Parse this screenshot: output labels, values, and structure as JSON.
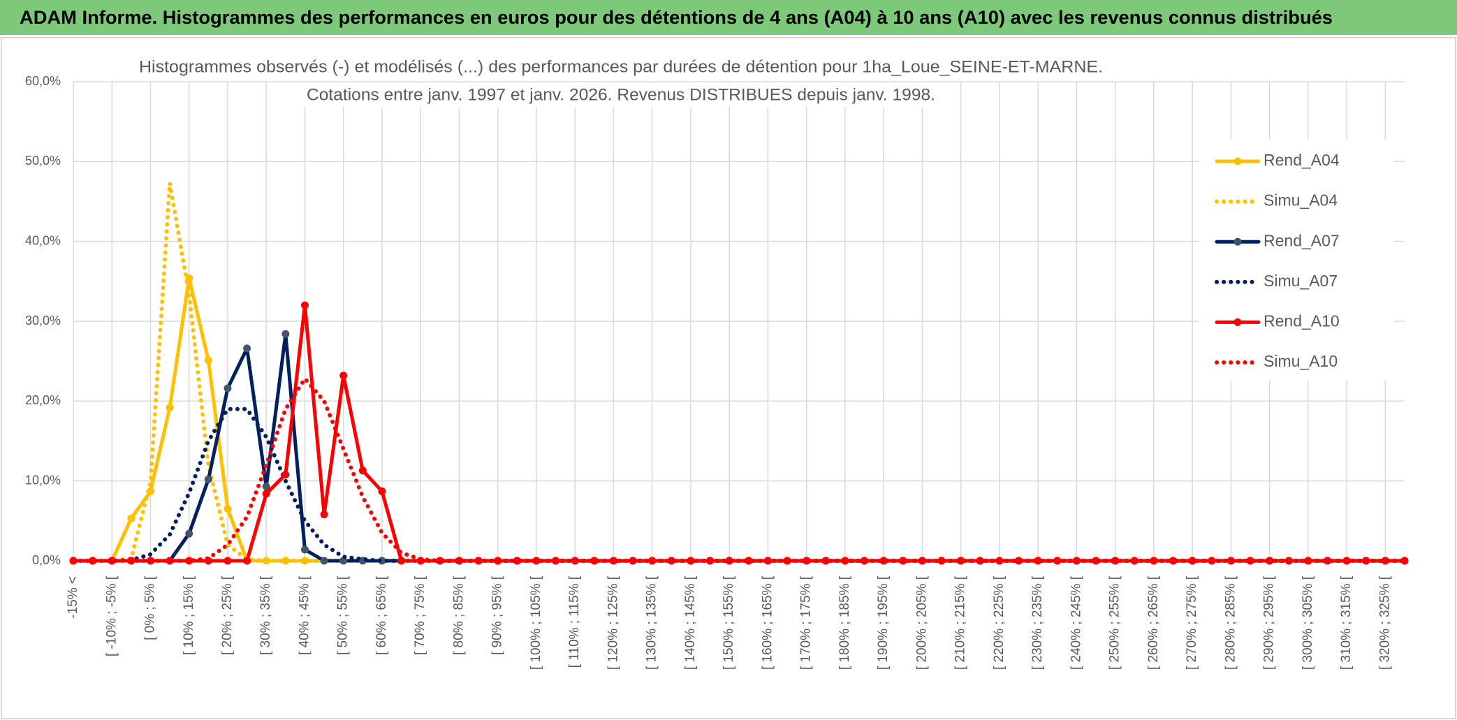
{
  "header": {
    "title": "ADAM Informe. Histogrammes des performances en euros pour des détentions de 4 ans (A04) à 10 ans (A10) avec les revenus connus distribués"
  },
  "chart_data": {
    "type": "line",
    "title": "Histogrammes observés (-) et modélisés (...) des performances par durées de détention pour 1ha_Loue_SEINE-ET-MARNE.",
    "subtitle": "Cotations entre janv. 1997 et janv. 2026. Revenus DISTRIBUES depuis janv. 1998.",
    "categories": [
      "-15% <",
      null,
      "[ -10% ; -5% [",
      null,
      "[ 0% ; 5% [",
      null,
      "[ 10% ; 15% [",
      null,
      "[ 20% ; 25% [",
      null,
      "[ 30% ; 35% [",
      null,
      "[ 40% ; 45% [",
      null,
      "[ 50% ; 55% [",
      null,
      "[ 60% ; 65% [",
      null,
      "[ 70% ; 75% [",
      null,
      "[ 80% ; 85% [",
      null,
      "[ 90% ; 95% [",
      null,
      "[ 100% ; 105% [",
      null,
      "[ 110% ; 115% [",
      null,
      "[ 120% ; 125% [",
      null,
      "[ 130% ; 135% [",
      null,
      "[ 140% ; 145% [",
      null,
      "[ 150% ; 155% [",
      null,
      "[ 160% ; 165% [",
      null,
      "[ 170% ; 175% [",
      null,
      "[ 180% ; 185% [",
      null,
      "[ 190% ; 195% [",
      null,
      "[ 200% ; 205% [",
      null,
      "[ 210% ; 215% [",
      null,
      "[ 220% ; 225% [",
      null,
      "[ 230% ; 235% [",
      null,
      "[ 240% ; 245% [",
      null,
      "[ 250% ; 255% [",
      null,
      "[ 260% ; 265% [",
      null,
      "[ 270% ; 275% [",
      null,
      "[ 280% ; 285% [",
      null,
      "[ 290% ; 295% [",
      null,
      "[ 300% ; 305% [",
      null,
      "[ 310% ; 315% [",
      null,
      "[ 320% ; 325% [",
      null
    ],
    "series": [
      {
        "name": "Rend_A04",
        "color": "#FFC000",
        "line_style": "solid",
        "markers": true,
        "values": [
          0,
          0,
          0,
          5.3,
          8.7,
          19.2,
          35.4,
          25.1,
          6.5,
          0,
          0,
          0,
          0,
          0,
          0,
          0,
          0,
          0,
          0,
          0,
          0,
          0,
          0,
          0,
          0,
          0,
          0,
          0,
          0,
          0,
          0,
          0,
          0,
          0,
          0,
          0,
          0,
          0,
          0,
          0,
          0,
          0,
          0,
          0,
          0,
          0,
          0,
          0,
          0,
          0,
          0,
          0,
          0,
          0,
          0,
          0,
          0,
          0,
          0,
          0,
          0,
          0,
          0,
          0,
          0,
          0,
          0,
          0,
          0,
          0
        ]
      },
      {
        "name": "Simu_A04",
        "color": "#FFC000",
        "line_style": "dotted",
        "markers": false,
        "values": [
          0,
          0,
          0,
          0.3,
          9.8,
          47.3,
          33.3,
          12,
          2,
          0.2,
          0,
          0,
          0,
          0,
          0,
          0,
          0,
          0,
          0,
          0,
          0,
          0,
          0,
          0,
          0,
          0,
          0,
          0,
          0,
          0,
          0,
          0,
          0,
          0,
          0,
          0,
          0,
          0,
          0,
          0,
          0,
          0,
          0,
          0,
          0,
          0,
          0,
          0,
          0,
          0,
          0,
          0,
          0,
          0,
          0,
          0,
          0,
          0,
          0,
          0,
          0,
          0,
          0,
          0,
          0,
          0,
          0,
          0,
          0,
          0
        ]
      },
      {
        "name": "Rend_A07",
        "color": "#002060",
        "line_style": "solid",
        "markers": true,
        "values": [
          0,
          0,
          0,
          0,
          0,
          0,
          3.4,
          10.2,
          21.6,
          26.6,
          9.3,
          28.4,
          1.4,
          0,
          0,
          0,
          0,
          0,
          0,
          0,
          0,
          0,
          0,
          0,
          0,
          0,
          0,
          0,
          0,
          0,
          0,
          0,
          0,
          0,
          0,
          0,
          0,
          0,
          0,
          0,
          0,
          0,
          0,
          0,
          0,
          0,
          0,
          0,
          0,
          0,
          0,
          0,
          0,
          0,
          0,
          0,
          0,
          0,
          0,
          0,
          0,
          0,
          0,
          0,
          0,
          0,
          0,
          0,
          0,
          0
        ]
      },
      {
        "name": "Simu_A07",
        "color": "#002060",
        "line_style": "dotted",
        "markers": false,
        "values": [
          0,
          0,
          0,
          0.1,
          0.8,
          3.3,
          8.5,
          15,
          19,
          19,
          15.5,
          10,
          5,
          2,
          0.5,
          0.2,
          0,
          0,
          0,
          0,
          0,
          0,
          0,
          0,
          0,
          0,
          0,
          0,
          0,
          0,
          0,
          0,
          0,
          0,
          0,
          0,
          0,
          0,
          0,
          0,
          0,
          0,
          0,
          0,
          0,
          0,
          0,
          0,
          0,
          0,
          0,
          0,
          0,
          0,
          0,
          0,
          0,
          0,
          0,
          0,
          0,
          0,
          0,
          0,
          0,
          0,
          0,
          0,
          0,
          0
        ]
      },
      {
        "name": "Rend_A10",
        "color": "#FF0000",
        "line_style": "solid",
        "markers": true,
        "values": [
          0,
          0,
          0,
          0,
          0,
          0,
          0,
          0,
          0,
          0,
          8.4,
          10.8,
          32,
          5.8,
          23.2,
          11.3,
          8.7,
          0,
          0,
          0,
          0,
          0,
          0,
          0,
          0,
          0,
          0,
          0,
          0,
          0,
          0,
          0,
          0,
          0,
          0,
          0,
          0,
          0,
          0,
          0,
          0,
          0,
          0,
          0,
          0,
          0,
          0,
          0,
          0,
          0,
          0,
          0,
          0,
          0,
          0,
          0,
          0,
          0,
          0,
          0,
          0,
          0,
          0,
          0,
          0,
          0,
          0,
          0,
          0,
          0
        ]
      },
      {
        "name": "Simu_A10",
        "color": "#FF0000",
        "line_style": "dotted",
        "markers": false,
        "values": [
          0,
          0,
          0,
          0,
          0,
          0,
          0,
          0.3,
          2,
          5.5,
          12,
          19,
          22.8,
          20,
          14,
          8,
          3.5,
          1,
          0.2,
          0,
          0,
          0,
          0,
          0,
          0,
          0,
          0,
          0,
          0,
          0,
          0,
          0,
          0,
          0,
          0,
          0,
          0,
          0,
          0,
          0,
          0,
          0,
          0,
          0,
          0,
          0,
          0,
          0,
          0,
          0,
          0,
          0,
          0,
          0,
          0,
          0,
          0,
          0,
          0,
          0,
          0,
          0,
          0,
          0,
          0,
          0,
          0,
          0,
          0,
          0
        ]
      }
    ],
    "ylim": [
      0,
      60
    ],
    "yticks": [
      {
        "value": 0,
        "label": "0,0%"
      },
      {
        "value": 10,
        "label": "10,0%"
      },
      {
        "value": 20,
        "label": "20,0%"
      },
      {
        "value": 30,
        "label": "30,0%"
      },
      {
        "value": 40,
        "label": "40,0%"
      },
      {
        "value": 50,
        "label": "50,0%"
      },
      {
        "value": 60,
        "label": "60,0%"
      }
    ],
    "grid": true,
    "legend": "upper right"
  }
}
